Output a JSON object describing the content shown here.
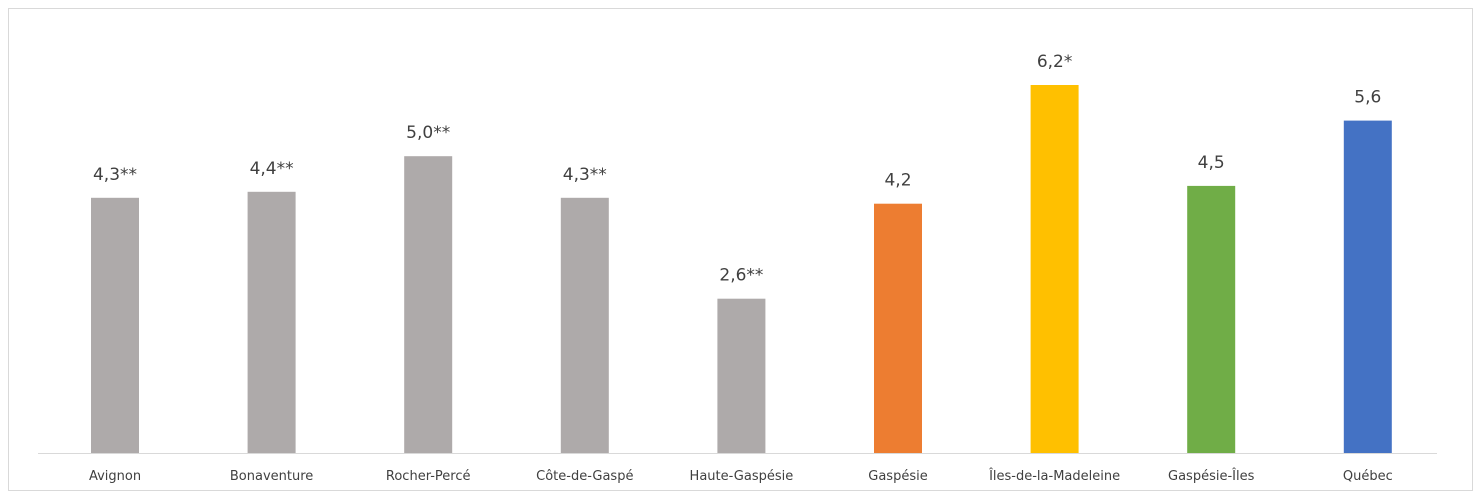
{
  "chart_data": {
    "type": "bar",
    "categories": [
      "Avignon",
      "Bonaventure",
      "Rocher-Percé",
      "Côte-de-Gaspé",
      "Haute-Gaspésie",
      "Gaspésie",
      "Îles-de-la-Madeleine",
      "Gaspésie-Îles",
      "Québec"
    ],
    "values": [
      4.3,
      4.4,
      5.0,
      4.3,
      2.6,
      4.2,
      6.2,
      4.5,
      5.6
    ],
    "data_labels": [
      "4,3**",
      "4,4**",
      "5,0**",
      "4,3**",
      "2,6**",
      "4,2",
      "6,2*",
      "4,5",
      "5,6"
    ],
    "colors": [
      "#aeaaaa",
      "#aeaaaa",
      "#aeaaaa",
      "#aeaaaa",
      "#aeaaaa",
      "#ed7d31",
      "#ffc000",
      "#70ad47",
      "#4472c4"
    ],
    "title": "",
    "xlabel": "",
    "ylabel": "",
    "ylim": [
      0,
      6.2
    ],
    "grid": false,
    "legend": "none"
  }
}
